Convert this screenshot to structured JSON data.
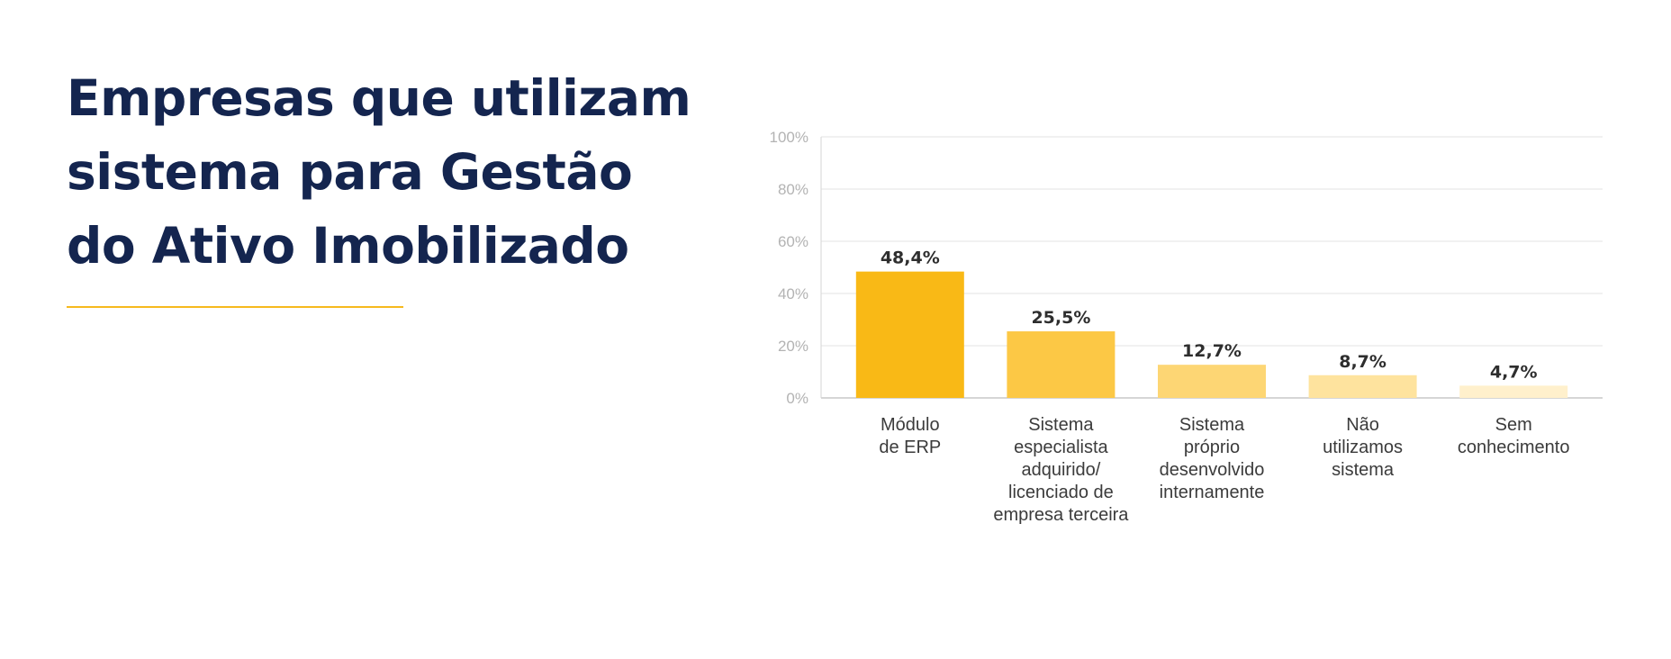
{
  "page": {
    "title_lines": [
      "Empresas que utilizam",
      "sistema para Gestão",
      "do Ativo Imobilizado"
    ],
    "accent_color": "#f6b91e",
    "title_color": "#14254f"
  },
  "chart_data": {
    "type": "bar",
    "categories": [
      [
        "Módulo",
        "de ERP"
      ],
      [
        "Sistema",
        "especialista",
        "adquirido/",
        "licenciado de",
        "empresa terceira"
      ],
      [
        "Sistema",
        "próprio",
        "desenvolvido",
        "internamente"
      ],
      [
        "Não",
        "utilizamos",
        "sistema"
      ],
      [
        "Sem",
        "conhecimento"
      ]
    ],
    "values": [
      48.4,
      25.5,
      12.7,
      8.7,
      4.7
    ],
    "value_labels": [
      "48,4%",
      "25,5%",
      "12,7%",
      "8,7%",
      "4,7%"
    ],
    "bar_colors": [
      "#f9b916",
      "#fcc845",
      "#fdd674",
      "#fee39e",
      "#fff0cc"
    ],
    "ylim": [
      0,
      100
    ],
    "yticks": [
      0,
      20,
      40,
      60,
      80,
      100
    ],
    "ytick_labels": [
      "0%",
      "20%",
      "40%",
      "60%",
      "80%",
      "100%"
    ],
    "grid": true
  }
}
